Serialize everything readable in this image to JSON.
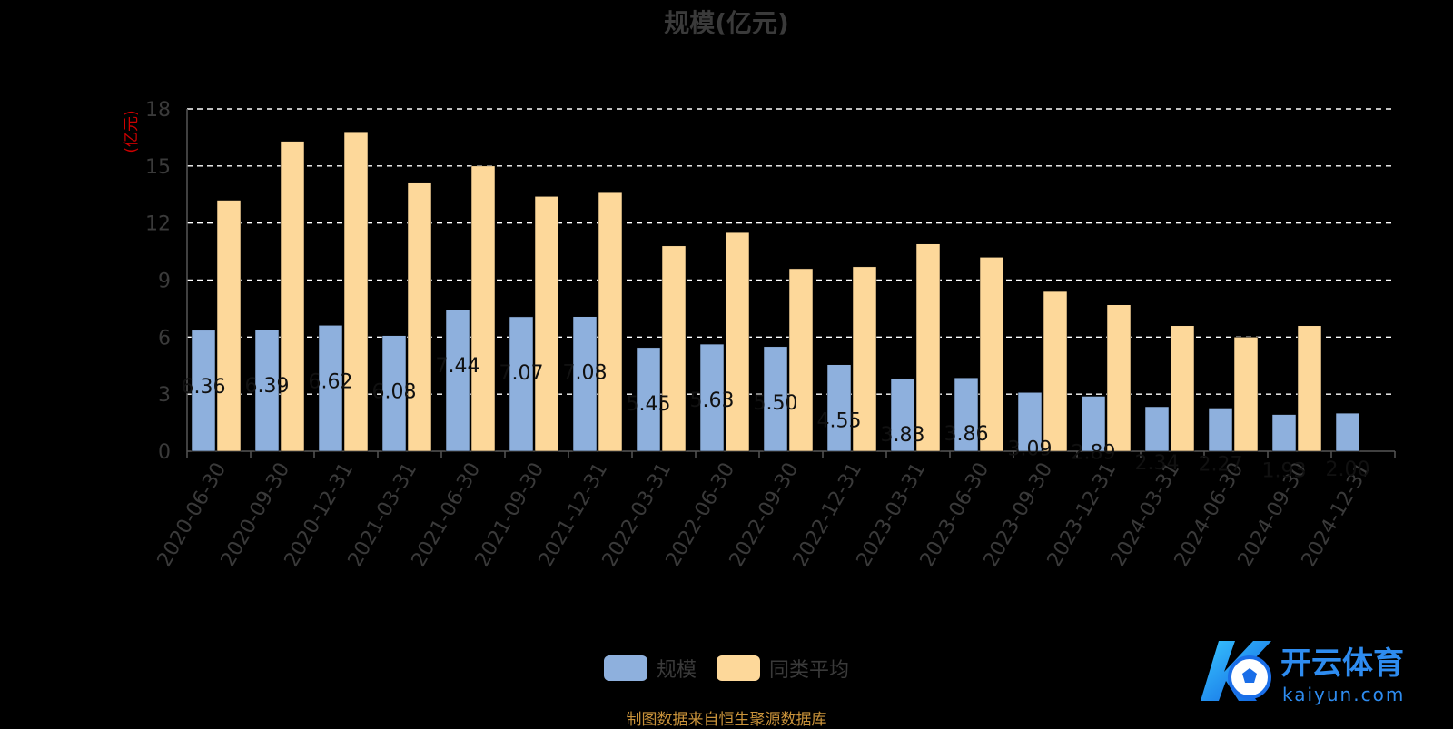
{
  "chart_data": {
    "type": "bar",
    "title": "规模(亿元)",
    "ylabel": "(亿元)",
    "ylim": [
      0,
      18
    ],
    "yticks": [
      0,
      3,
      6,
      9,
      12,
      15,
      18
    ],
    "grid": true,
    "legend_position": "bottom",
    "categories": [
      "2020-06-30",
      "2020-09-30",
      "2020-12-31",
      "2021-03-31",
      "2021-06-30",
      "2021-09-30",
      "2021-12-31",
      "2022-03-31",
      "2022-06-30",
      "2022-09-30",
      "2022-12-31",
      "2023-03-31",
      "2023-06-30",
      "2023-09-30",
      "2023-12-31",
      "2024-03-31",
      "2024-06-30",
      "2024-09-30",
      "2024-12-31"
    ],
    "series": [
      {
        "name": "规模",
        "color": "#8eb0dd",
        "values": [
          6.36,
          6.39,
          6.62,
          6.08,
          7.44,
          7.07,
          7.08,
          5.45,
          5.63,
          5.5,
          4.55,
          3.83,
          3.86,
          3.09,
          2.89,
          2.34,
          2.27,
          1.93,
          2.0
        ],
        "labels": [
          "6.36",
          "6.39",
          "6.62",
          "6.08",
          "7.44",
          "7.07",
          "7.08",
          "5.45",
          "5.63",
          "5.50",
          "4.55",
          "3.83",
          "3.86",
          "3.09",
          "2.89",
          "2.34",
          "2.27",
          "1.93",
          "2.00"
        ]
      },
      {
        "name": "同类平均",
        "color": "#fdd89a",
        "values": [
          13.2,
          16.3,
          16.8,
          14.1,
          15.0,
          13.4,
          13.6,
          10.8,
          11.5,
          9.6,
          9.7,
          10.9,
          10.2,
          8.4,
          7.7,
          6.6,
          6.0,
          6.6,
          null
        ]
      }
    ]
  },
  "source_note": "制图数据来自恒生聚源数据库",
  "watermark": {
    "brand": "开云体育",
    "domain": "kaiyun.com"
  }
}
